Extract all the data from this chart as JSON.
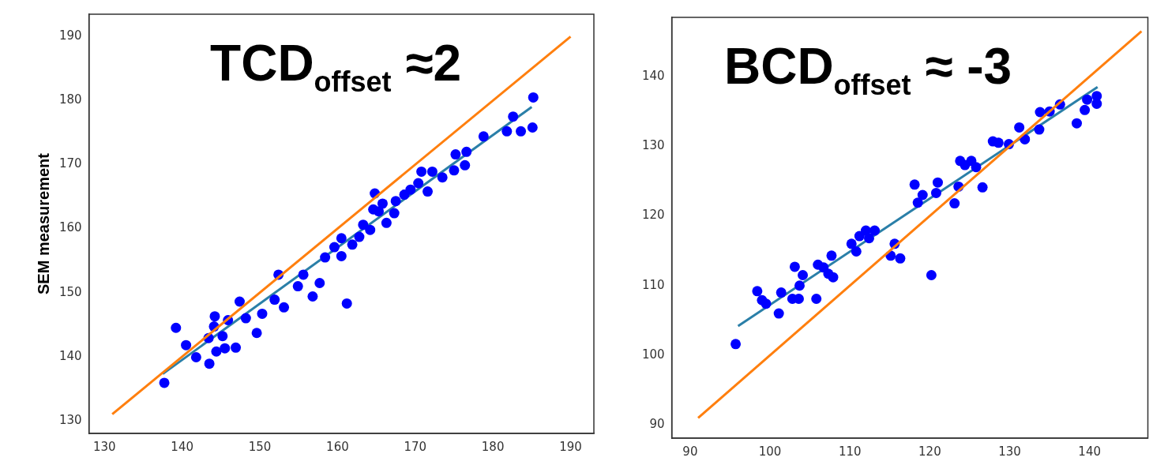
{
  "chart_data": [
    {
      "type": "scatter",
      "title": "TCD$_{offset}$ ≈2",
      "ylabel": "SEM measurement",
      "marker": "circle",
      "xlim": [
        128,
        193
      ],
      "ylim": [
        128,
        193.5
      ],
      "xticks": [
        130,
        140,
        150,
        160,
        170,
        180,
        190
      ],
      "yticks": [
        130,
        140,
        150,
        160,
        170,
        180,
        190
      ],
      "series": [
        {
          "type": "line",
          "color": "#ff7f0e",
          "x": [
            131,
            190
          ],
          "values": [
            131,
            190
          ],
          "marker": "none"
        },
        {
          "type": "scatter",
          "color": "#0000ff",
          "x": [
            137.7,
            139.2,
            140.5,
            141.8,
            143.5,
            144.2,
            144.1,
            143.4,
            144.4,
            145.5,
            145.2,
            145.9,
            146.9,
            147.4,
            148.2,
            149.6,
            150.3,
            151.9,
            152.4,
            153.1,
            154.9,
            155.6,
            156.8,
            157.7,
            158.4,
            159.6,
            160.5,
            160.5,
            161.2,
            161.9,
            162.8,
            163.3,
            164.2,
            164.6,
            164.8,
            165.3,
            165.8,
            166.3,
            167.3,
            167.5,
            168.6,
            169.4,
            170.4,
            170.8,
            171.6,
            172.2,
            173.5,
            175,
            175.2,
            176.4,
            176.6,
            178.8,
            181.8,
            182.6,
            183.6,
            185.1,
            185.2
          ],
          "values": [
            135.9,
            144.5,
            141.8,
            139.9,
            138.9,
            146.3,
            144.7,
            142.9,
            140.8,
            141.3,
            143.2,
            145.7,
            141.4,
            148.6,
            146,
            143.7,
            146.7,
            148.9,
            152.8,
            147.7,
            151,
            152.8,
            149.4,
            151.5,
            155.5,
            157.1,
            155.7,
            158.5,
            148.3,
            157.5,
            158.7,
            160.6,
            159.8,
            163,
            165.5,
            162.7,
            163.9,
            160.9,
            162.4,
            164.3,
            165.3,
            166.1,
            167.1,
            168.9,
            165.8,
            168.9,
            168,
            169.1,
            171.6,
            169.9,
            172,
            174.4,
            175.2,
            177.5,
            175.2,
            175.8,
            180.5
          ]
        },
        {
          "type": "line",
          "color": "#2a7fa8",
          "x": [
            137.5,
            185
          ],
          "values": [
            137.3,
            179
          ],
          "marker": "none"
        }
      ]
    },
    {
      "type": "scatter",
      "title": "BCD$_{offset}$ ≈ -3",
      "marker": "circle",
      "xlim": [
        87.7,
        147.3
      ],
      "ylim": [
        88.1,
        148.5
      ],
      "xticks": [
        90,
        100,
        110,
        120,
        130,
        140
      ],
      "yticks": [
        90,
        100,
        110,
        120,
        130,
        140
      ],
      "series": [
        {
          "type": "line",
          "color": "#ff7f0e",
          "x": [
            91,
            146.5
          ],
          "values": [
            91,
            146.5
          ],
          "marker": "none"
        },
        {
          "type": "scatter",
          "color": "#0000ff",
          "x": [
            95.7,
            98.4,
            99,
            99.5,
            101.1,
            101.4,
            102.8,
            103.1,
            103.6,
            103.7,
            104.1,
            105.8,
            106,
            106.7,
            107.3,
            107.7,
            107.9,
            110.2,
            110.8,
            111.2,
            112,
            112.4,
            113.1,
            115.1,
            115.6,
            116.3,
            118.1,
            118.5,
            119.1,
            120.2,
            120.8,
            121,
            123.1,
            123.6,
            123.8,
            124.4,
            125.2,
            125.8,
            126.6,
            127.9,
            128.6,
            129.9,
            131.2,
            131.9,
            133.7,
            133.8,
            135,
            136.3,
            138.4,
            139.4,
            139.7,
            140.9,
            140.9
          ],
          "values": [
            101.6,
            109.2,
            107.9,
            107.4,
            106,
            109,
            108.1,
            112.7,
            108.1,
            110,
            111.5,
            108.1,
            113,
            112.6,
            111.7,
            114.3,
            111.2,
            116,
            114.9,
            117.1,
            117.9,
            116.8,
            117.9,
            114.3,
            116,
            113.9,
            124.5,
            121.9,
            123,
            111.5,
            123.3,
            124.8,
            121.8,
            124.2,
            127.9,
            127.3,
            127.9,
            127,
            124.1,
            130.7,
            130.5,
            130.3,
            132.7,
            131,
            132.4,
            134.9,
            135,
            136,
            133.3,
            135.2,
            136.7,
            137.2,
            136.1
          ]
        },
        {
          "type": "line",
          "color": "#2a7fa8",
          "x": [
            96,
            141
          ],
          "values": [
            104.2,
            138.5
          ],
          "marker": "none"
        }
      ]
    }
  ]
}
